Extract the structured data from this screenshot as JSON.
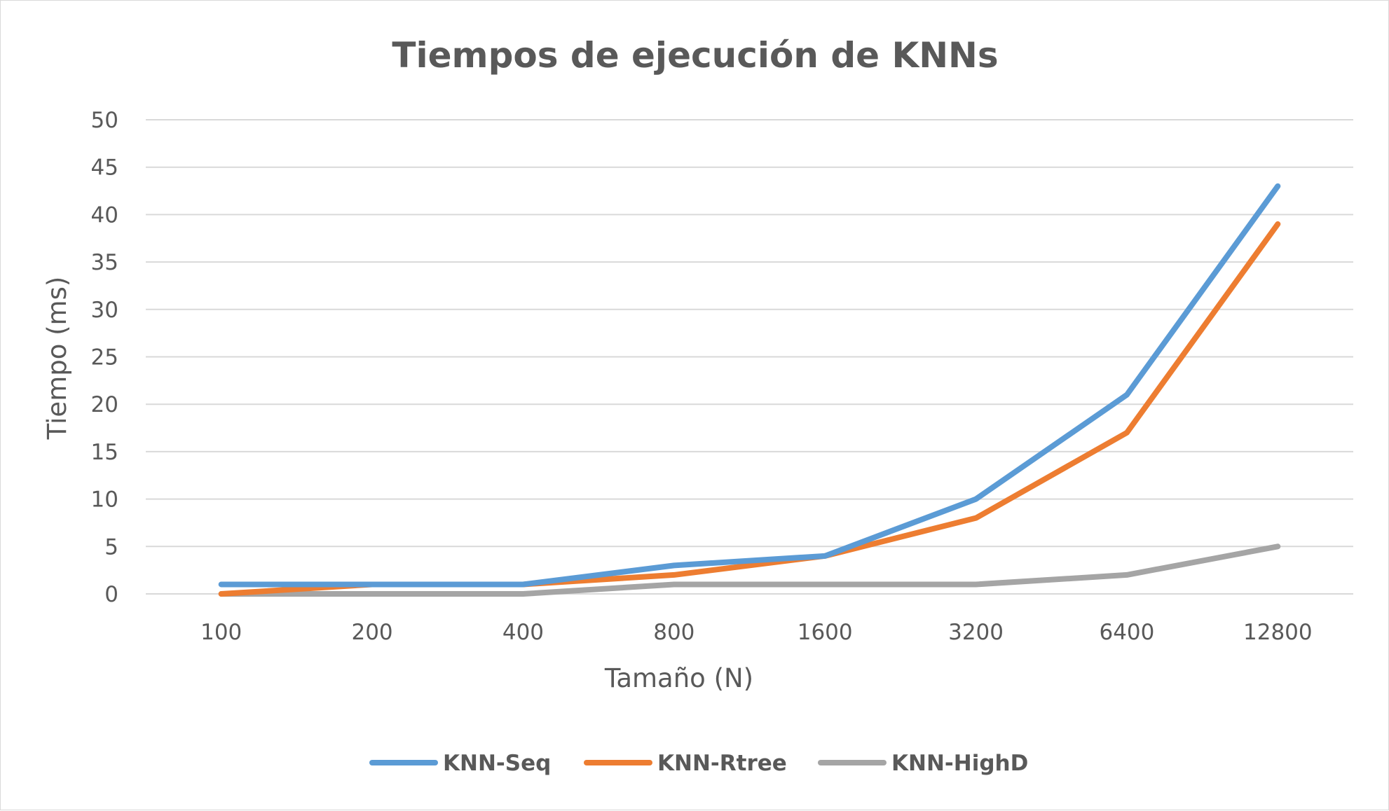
{
  "chart_data": {
    "type": "line",
    "title": "Tiempos de ejecución de KNNs",
    "xlabel": "Tamaño (N)",
    "ylabel": "Tiempo (ms)",
    "categories": [
      "100",
      "200",
      "400",
      "800",
      "1600",
      "3200",
      "6400",
      "12800"
    ],
    "ylim": [
      0,
      50
    ],
    "yticks": [
      "0",
      "5",
      "10",
      "15",
      "20",
      "25",
      "30",
      "35",
      "40",
      "45",
      "50"
    ],
    "grid": true,
    "legend_position": "bottom",
    "series": [
      {
        "name": "KNN-Seq",
        "color": "#5b9bd5",
        "values": [
          1,
          1,
          1,
          3,
          4,
          10,
          21,
          43
        ]
      },
      {
        "name": "KNN-Rtree",
        "color": "#ed7d31",
        "values": [
          0,
          1,
          1,
          2,
          4,
          8,
          17,
          39
        ]
      },
      {
        "name": "KNN-HighD",
        "color": "#a5a5a5",
        "values": [
          0,
          0,
          0,
          1,
          1,
          1,
          2,
          5
        ]
      }
    ]
  }
}
